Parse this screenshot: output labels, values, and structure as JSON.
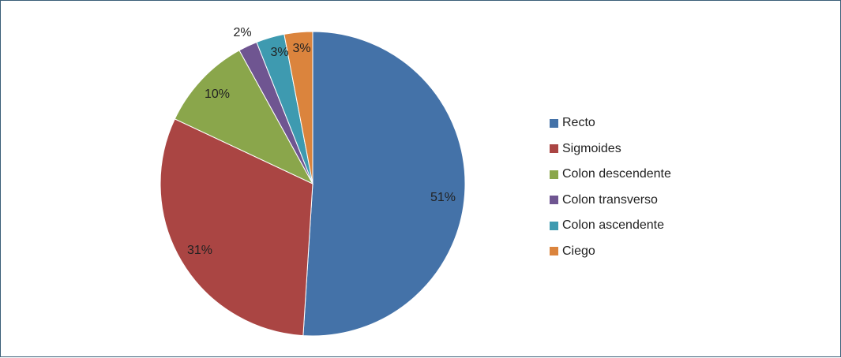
{
  "chart_data": {
    "type": "pie",
    "title": "",
    "start_angle_deg": 0,
    "direction": "clockwise",
    "legend_position": "right",
    "slices": [
      {
        "label": "Recto",
        "value": 51,
        "display": "51%",
        "color": "#4472a8"
      },
      {
        "label": "Sigmoides",
        "value": 31,
        "display": "31%",
        "color": "#aa4543"
      },
      {
        "label": "Colon descendente",
        "value": 10,
        "display": "10%",
        "color": "#8aa64b"
      },
      {
        "label": "Colon transverso",
        "value": 2,
        "display": "2%",
        "color": "#6f5591"
      },
      {
        "label": "Colon ascendente",
        "value": 3,
        "display": "3%",
        "color": "#3e9ab0"
      },
      {
        "label": "Ciego",
        "value": 3,
        "display": "3%",
        "color": "#db843d"
      }
    ]
  }
}
